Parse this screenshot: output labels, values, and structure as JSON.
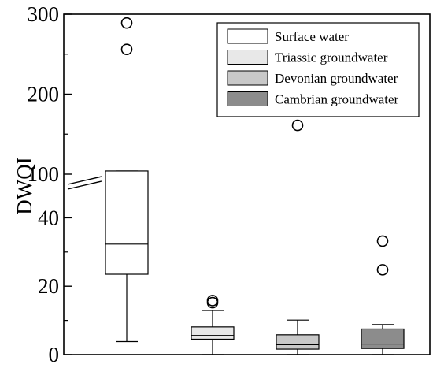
{
  "chart_data": {
    "type": "boxplot",
    "title": "",
    "xlabel": "",
    "ylabel": "DWQI",
    "y_axis": {
      "scale": "broken",
      "lower_segment": {
        "range": [
          0,
          50
        ],
        "ticks": [
          0,
          20,
          40
        ]
      },
      "upper_segment": {
        "range": [
          100,
          300
        ],
        "ticks": [
          100,
          200,
          300
        ]
      }
    },
    "legend": {
      "position": "top-right"
    },
    "colors": {
      "Surface water": "#ffffff",
      "Triassic groundwater": "#e8e8e8",
      "Devonian groundwater": "#c8c8c8",
      "Cambrian groundwater": "#8c8c8c"
    },
    "series": [
      {
        "name": "Surface water",
        "whisker_low": 3.8,
        "q1": 23.5,
        "median": 32.3,
        "q3": 104,
        "whisker_high": 104,
        "outliers": [
          256,
          289
        ]
      },
      {
        "name": "Triassic groundwater",
        "whisker_low": 0,
        "q1": 4.5,
        "median": 5.6,
        "q3": 8.1,
        "whisker_high": 12.9,
        "outliers": [
          15.2,
          15.8
        ]
      },
      {
        "name": "Devonian groundwater",
        "whisker_low": 0,
        "q1": 1.6,
        "median": 2.9,
        "q3": 5.8,
        "whisker_high": 10.1,
        "outliers": [
          161
        ]
      },
      {
        "name": "Cambrian groundwater",
        "whisker_low": 0,
        "q1": 1.8,
        "median": 3.1,
        "q3": 7.5,
        "whisker_high": 8.8,
        "outliers": [
          24.8,
          33.2
        ]
      }
    ]
  }
}
